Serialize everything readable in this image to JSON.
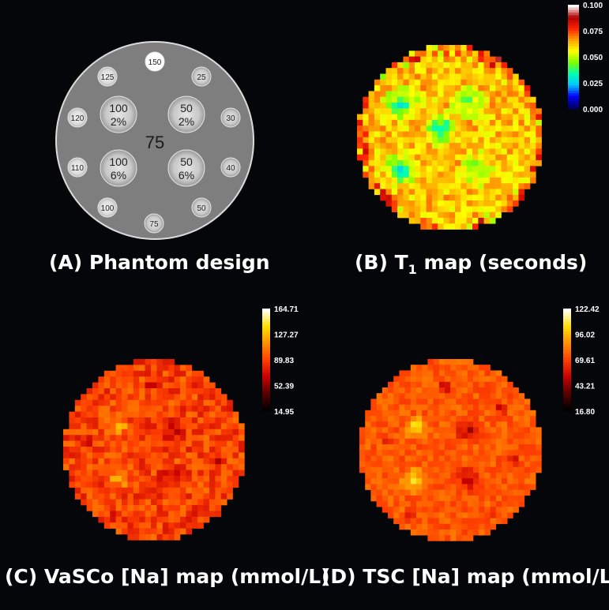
{
  "panelA": {
    "caption": "(A) Phantom design",
    "center_label": "75",
    "wells": [
      {
        "id": "w150",
        "label": "150",
        "small": true
      },
      {
        "id": "w125",
        "label": "125",
        "small": true
      },
      {
        "id": "w25",
        "label": "25",
        "small": true
      },
      {
        "id": "w120",
        "label": "120",
        "small": true
      },
      {
        "id": "w30",
        "label": "30",
        "small": true
      },
      {
        "id": "w110",
        "label": "110",
        "small": true
      },
      {
        "id": "w40",
        "label": "40",
        "small": true
      },
      {
        "id": "w100s",
        "label": "100",
        "small": true
      },
      {
        "id": "w75",
        "label": "75",
        "small": true
      },
      {
        "id": "w50s",
        "label": "50",
        "small": true
      },
      {
        "id": "big100a",
        "label": "100",
        "sub": "2%",
        "small": false
      },
      {
        "id": "big50a",
        "label": "50",
        "sub": "2%",
        "small": false
      },
      {
        "id": "big100b",
        "label": "100",
        "sub": "6%",
        "small": false
      },
      {
        "id": "big50b",
        "label": "50",
        "sub": "6%",
        "small": false
      }
    ]
  },
  "panelB": {
    "caption_prefix": "(B) T",
    "caption_subscript": "1",
    "caption_suffix": " map (seconds)",
    "colorbar_ticks": [
      "0.100",
      "0.075",
      "0.050",
      "0.025",
      "0.000"
    ],
    "colormap": [
      "#000066",
      "#0000ff",
      "#00c8ff",
      "#00ffb0",
      "#7fff00",
      "#ffff00",
      "#ffa000",
      "#ff2000",
      "#b00000",
      "#ffffff"
    ]
  },
  "panelC": {
    "caption": "(C) VaSCo [Na] map (mmol/L)",
    "colorbar_ticks": [
      "164.71",
      "127.27",
      "89.83",
      "52.39",
      "14.95"
    ],
    "colormap": [
      "#000000",
      "#5a0000",
      "#c80000",
      "#ff4000",
      "#ff9000",
      "#ffe000",
      "#ffffff"
    ]
  },
  "panelD": {
    "caption": "(D) TSC [Na] map (mmol/L)",
    "colorbar_ticks": [
      "122.42",
      "96.02",
      "69.61",
      "43.21",
      "16.80"
    ],
    "colormap": [
      "#000000",
      "#5a0000",
      "#c80000",
      "#ff4000",
      "#ff9000",
      "#ffe000",
      "#ffffff"
    ]
  }
}
